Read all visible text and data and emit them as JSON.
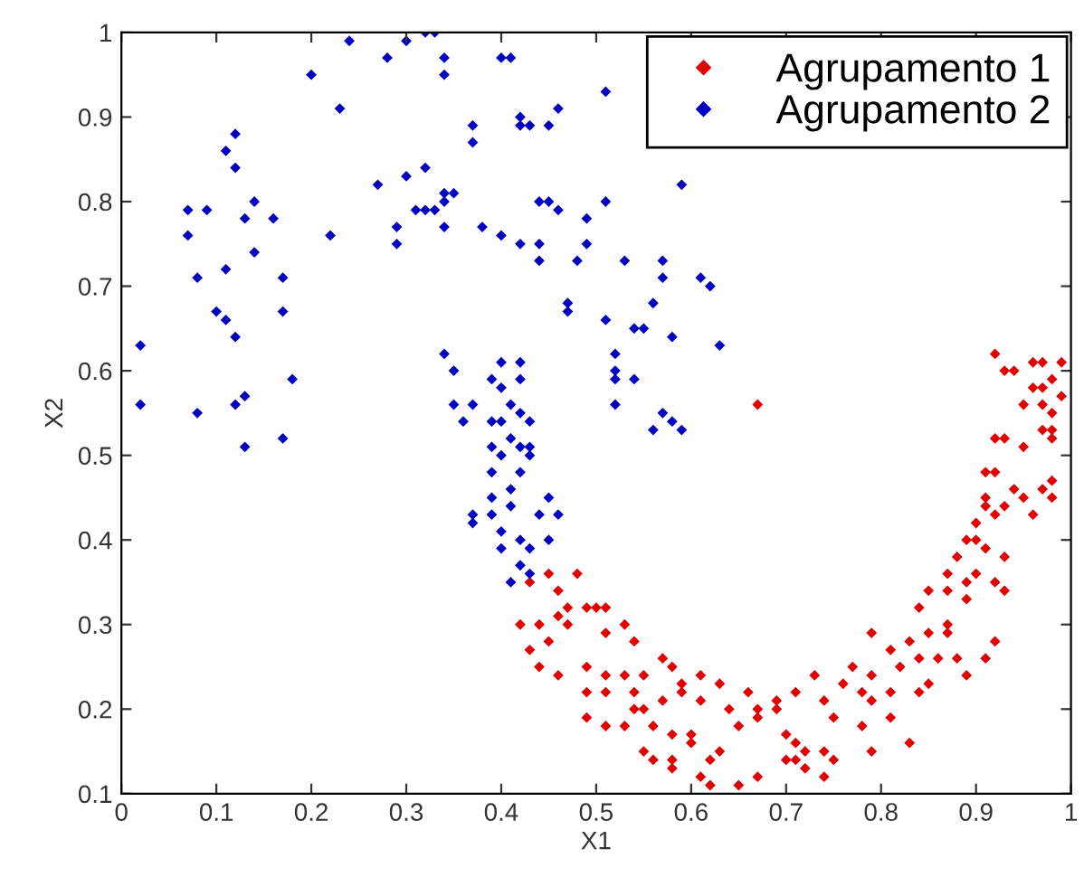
{
  "chart_data": {
    "type": "scatter",
    "xlabel": "X1",
    "ylabel": "X2",
    "xlim": [
      0,
      1
    ],
    "ylim": [
      0.1,
      1
    ],
    "xticks": [
      0,
      0.1,
      0.2,
      0.3,
      0.4,
      0.5,
      0.6,
      0.7,
      0.8,
      0.9,
      1
    ],
    "yticks": [
      0.1,
      0.2,
      0.3,
      0.4,
      0.5,
      0.6,
      0.7,
      0.8,
      0.9,
      1
    ],
    "grid": false,
    "legend": "top right",
    "marker": "diamond",
    "series": [
      {
        "name": "Agrupamento 1",
        "color": "#e00000",
        "x": [
          0.67,
          0.43,
          0.45,
          0.46,
          0.48,
          0.47,
          0.49,
          0.5,
          0.51,
          0.42,
          0.44,
          0.46,
          0.47,
          0.53,
          0.45,
          0.43,
          0.51,
          0.54,
          0.44,
          0.46,
          0.49,
          0.51,
          0.53,
          0.55,
          0.57,
          0.58,
          0.49,
          0.51,
          0.54,
          0.57,
          0.59,
          0.61,
          0.63,
          0.49,
          0.51,
          0.53,
          0.54,
          0.55,
          0.56,
          0.58,
          0.59,
          0.61,
          0.64,
          0.66,
          0.67,
          0.65,
          0.63,
          0.6,
          0.6,
          0.55,
          0.56,
          0.58,
          0.58,
          0.62,
          0.61,
          0.62,
          0.65,
          0.67,
          0.67,
          0.69,
          0.71,
          0.73,
          0.69,
          0.7,
          0.71,
          0.72,
          0.7,
          0.71,
          0.72,
          0.74,
          0.74,
          0.75,
          0.74,
          0.75,
          0.76,
          0.77,
          0.78,
          0.78,
          0.79,
          0.79,
          0.79,
          0.79,
          0.81,
          0.81,
          0.81,
          0.82,
          0.83,
          0.83,
          0.84,
          0.84,
          0.85,
          0.85,
          0.87,
          0.87,
          0.86,
          0.88,
          0.89,
          0.84,
          0.85,
          0.87,
          0.88,
          0.87,
          0.89,
          0.89,
          0.9,
          0.92,
          0.91,
          0.93,
          0.92,
          0.93,
          0.89,
          0.9,
          0.91,
          0.9,
          0.91,
          0.91,
          0.92,
          0.93,
          0.94,
          0.95,
          0.96,
          0.97,
          0.98,
          0.98,
          0.92,
          0.91,
          0.92,
          0.93,
          0.95,
          0.97,
          0.98,
          0.98,
          0.97,
          0.93,
          0.94,
          0.97,
          0.98,
          0.92,
          0.96,
          0.97,
          0.99,
          0.96,
          0.95,
          0.98,
          0.99
        ],
        "values": [
          0.56,
          0.35,
          0.36,
          0.34,
          0.36,
          0.32,
          0.32,
          0.32,
          0.32,
          0.3,
          0.3,
          0.31,
          0.3,
          0.3,
          0.28,
          0.27,
          0.29,
          0.28,
          0.25,
          0.24,
          0.25,
          0.24,
          0.24,
          0.24,
          0.26,
          0.25,
          0.22,
          0.22,
          0.22,
          0.21,
          0.23,
          0.24,
          0.23,
          0.19,
          0.18,
          0.18,
          0.2,
          0.2,
          0.18,
          0.17,
          0.22,
          0.21,
          0.2,
          0.22,
          0.2,
          0.18,
          0.15,
          0.17,
          0.16,
          0.15,
          0.14,
          0.14,
          0.13,
          0.14,
          0.12,
          0.11,
          0.11,
          0.12,
          0.19,
          0.21,
          0.22,
          0.24,
          0.2,
          0.17,
          0.16,
          0.15,
          0.14,
          0.14,
          0.13,
          0.12,
          0.21,
          0.19,
          0.15,
          0.14,
          0.23,
          0.25,
          0.22,
          0.18,
          0.29,
          0.24,
          0.21,
          0.15,
          0.27,
          0.22,
          0.19,
          0.25,
          0.16,
          0.28,
          0.26,
          0.22,
          0.23,
          0.29,
          0.29,
          0.3,
          0.26,
          0.26,
          0.24,
          0.32,
          0.34,
          0.36,
          0.38,
          0.34,
          0.35,
          0.33,
          0.36,
          0.28,
          0.26,
          0.38,
          0.35,
          0.34,
          0.4,
          0.4,
          0.39,
          0.42,
          0.44,
          0.45,
          0.43,
          0.44,
          0.46,
          0.45,
          0.43,
          0.46,
          0.47,
          0.45,
          0.48,
          0.48,
          0.52,
          0.52,
          0.51,
          0.53,
          0.52,
          0.55,
          0.56,
          0.6,
          0.6,
          0.58,
          0.59,
          0.62,
          0.61,
          0.61,
          0.61,
          0.58,
          0.56,
          0.53,
          0.57
        ]
      },
      {
        "name": "Agrupamento 2",
        "color": "#0000c0",
        "x": [
          0.24,
          0.3,
          0.32,
          0.33,
          0.28,
          0.34,
          0.34,
          0.4,
          0.41,
          0.2,
          0.23,
          0.42,
          0.42,
          0.43,
          0.46,
          0.45,
          0.37,
          0.37,
          0.12,
          0.11,
          0.12,
          0.32,
          0.3,
          0.27,
          0.34,
          0.35,
          0.34,
          0.31,
          0.32,
          0.33,
          0.34,
          0.29,
          0.29,
          0.22,
          0.07,
          0.09,
          0.13,
          0.14,
          0.16,
          0.07,
          0.14,
          0.11,
          0.08,
          0.17,
          0.17,
          0.1,
          0.11,
          0.12,
          0.38,
          0.4,
          0.42,
          0.44,
          0.45,
          0.46,
          0.49,
          0.44,
          0.49,
          0.44,
          0.48,
          0.47,
          0.47,
          0.51,
          0.53,
          0.51,
          0.54,
          0.52,
          0.52,
          0.52,
          0.54,
          0.52,
          0.02,
          0.02,
          0.08,
          0.12,
          0.13,
          0.18,
          0.13,
          0.17,
          0.51,
          0.59,
          0.57,
          0.57,
          0.61,
          0.62,
          0.56,
          0.55,
          0.58,
          0.63,
          0.57,
          0.58,
          0.59,
          0.56,
          0.34,
          0.35,
          0.4,
          0.42,
          0.39,
          0.4,
          0.42,
          0.35,
          0.37,
          0.36,
          0.41,
          0.42,
          0.4,
          0.39,
          0.43,
          0.41,
          0.39,
          0.4,
          0.42,
          0.43,
          0.43,
          0.42,
          0.39,
          0.41,
          0.39,
          0.41,
          0.45,
          0.46,
          0.44,
          0.39,
          0.37,
          0.37,
          0.4,
          0.42,
          0.45,
          0.4,
          0.43,
          0.42,
          0.43,
          0.41
        ],
        "values": [
          0.99,
          0.99,
          1.0,
          1.0,
          0.97,
          0.97,
          0.95,
          0.97,
          0.97,
          0.95,
          0.91,
          0.9,
          0.89,
          0.89,
          0.91,
          0.89,
          0.89,
          0.87,
          0.88,
          0.86,
          0.84,
          0.84,
          0.83,
          0.82,
          0.81,
          0.81,
          0.8,
          0.79,
          0.79,
          0.79,
          0.77,
          0.77,
          0.75,
          0.76,
          0.79,
          0.79,
          0.78,
          0.8,
          0.78,
          0.76,
          0.74,
          0.72,
          0.71,
          0.71,
          0.67,
          0.67,
          0.66,
          0.64,
          0.77,
          0.76,
          0.75,
          0.8,
          0.8,
          0.79,
          0.78,
          0.75,
          0.75,
          0.73,
          0.73,
          0.68,
          0.67,
          0.8,
          0.73,
          0.66,
          0.65,
          0.62,
          0.6,
          0.59,
          0.59,
          0.56,
          0.63,
          0.56,
          0.55,
          0.56,
          0.57,
          0.59,
          0.51,
          0.52,
          0.93,
          0.82,
          0.73,
          0.71,
          0.71,
          0.7,
          0.68,
          0.65,
          0.64,
          0.63,
          0.55,
          0.54,
          0.53,
          0.53,
          0.62,
          0.6,
          0.61,
          0.61,
          0.59,
          0.58,
          0.59,
          0.56,
          0.56,
          0.54,
          0.56,
          0.55,
          0.54,
          0.54,
          0.54,
          0.52,
          0.51,
          0.5,
          0.51,
          0.51,
          0.5,
          0.48,
          0.48,
          0.46,
          0.45,
          0.44,
          0.45,
          0.43,
          0.43,
          0.43,
          0.43,
          0.42,
          0.41,
          0.4,
          0.4,
          0.39,
          0.39,
          0.37,
          0.36,
          0.35
        ]
      }
    ]
  }
}
